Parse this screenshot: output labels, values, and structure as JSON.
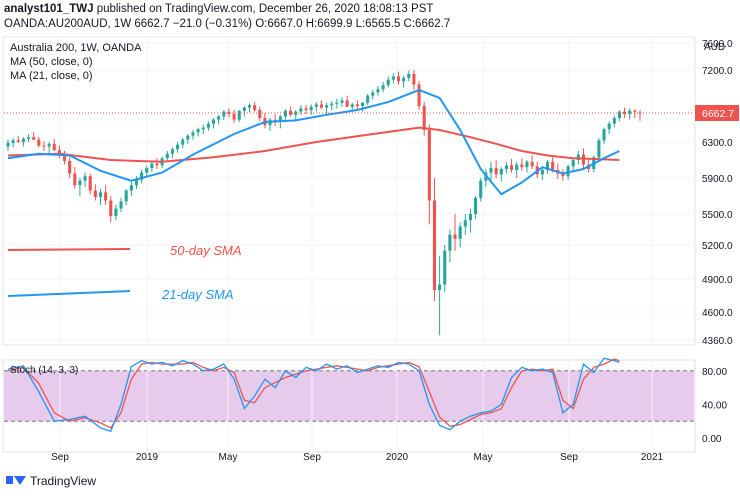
{
  "header": {
    "publisher": "analyst101_TWJ",
    "published_text": " published on TradingView.com, December 26, 2020 18:08:13 PST",
    "symbol_line": "OANDA:AU200AUD, 1W  6662.7  −21.0 (−0.31%)  O:6667.0  H:6699.9  L:6565.5  C:6662.7"
  },
  "chart_data": {
    "type": "candlestick",
    "title": "Australia 200, 1W, OANDA",
    "indicators": [
      "MA (50, close, 0)",
      "MA (21, close, 0)"
    ],
    "currency_label": "AUD",
    "y_ticks": [
      4360,
      4600,
      4900,
      5200,
      5500,
      5900,
      6300,
      6662.7,
      7200,
      7600
    ],
    "y_tick_labels": [
      "4360.0",
      "4600.0",
      "4900.0",
      "5200.0",
      "5500.0",
      "5900.0",
      "6300.0",
      "6662.7",
      "7200.0",
      "7600.0"
    ],
    "last_price_label": "6662.7",
    "x_tick_labels": [
      "Sep",
      "2019",
      "May",
      "Sep",
      "2020",
      "May",
      "Sep",
      "2021"
    ],
    "annotations": [
      "50-day SMA",
      "21-day SMA"
    ],
    "stoch": {
      "label": "Stoch (14, 3, 3)",
      "y_ticks": [
        "80.00",
        "40.00",
        "0.00"
      ],
      "levels": [
        80,
        20
      ]
    },
    "colors": {
      "up": "#26a69a",
      "down": "#ef5350",
      "ma50": "#ef5350",
      "ma21": "#2196f3",
      "stoch_k": "#2196f3",
      "stoch_d": "#ef5350",
      "stoch_band": "#e1bee7",
      "last_price_bg": "#ef5350"
    },
    "candles": [
      [
        6250,
        6330,
        6200,
        6290
      ],
      [
        6290,
        6350,
        6240,
        6320
      ],
      [
        6320,
        6380,
        6290,
        6300
      ],
      [
        6300,
        6360,
        6250,
        6340
      ],
      [
        6340,
        6400,
        6300,
        6360
      ],
      [
        6360,
        6420,
        6320,
        6330
      ],
      [
        6330,
        6360,
        6240,
        6260
      ],
      [
        6260,
        6310,
        6200,
        6250
      ],
      [
        6250,
        6300,
        6170,
        6280
      ],
      [
        6280,
        6340,
        6200,
        6210
      ],
      [
        6210,
        6260,
        6120,
        6150
      ],
      [
        6150,
        6200,
        6050,
        6090
      ],
      [
        6090,
        6130,
        5900,
        5950
      ],
      [
        5950,
        6020,
        5780,
        5820
      ],
      [
        5820,
        5900,
        5700,
        5870
      ],
      [
        5870,
        5960,
        5800,
        5920
      ],
      [
        5920,
        5950,
        5720,
        5760
      ],
      [
        5760,
        5830,
        5650,
        5690
      ],
      [
        5690,
        5780,
        5600,
        5740
      ],
      [
        5740,
        5820,
        5600,
        5650
      ],
      [
        5650,
        5700,
        5420,
        5480
      ],
      [
        5480,
        5600,
        5440,
        5560
      ],
      [
        5560,
        5680,
        5520,
        5640
      ],
      [
        5640,
        5780,
        5600,
        5760
      ],
      [
        5760,
        5860,
        5700,
        5820
      ],
      [
        5820,
        5920,
        5780,
        5880
      ],
      [
        5880,
        5990,
        5840,
        5960
      ],
      [
        5960,
        6040,
        5920,
        6010
      ],
      [
        6010,
        6090,
        5970,
        6060
      ],
      [
        6060,
        6120,
        6000,
        6040
      ],
      [
        6040,
        6140,
        6010,
        6120
      ],
      [
        6120,
        6200,
        6080,
        6170
      ],
      [
        6170,
        6240,
        6120,
        6220
      ],
      [
        6220,
        6300,
        6180,
        6270
      ],
      [
        6270,
        6350,
        6230,
        6330
      ],
      [
        6330,
        6400,
        6280,
        6380
      ],
      [
        6380,
        6450,
        6330,
        6420
      ],
      [
        6420,
        6480,
        6370,
        6460
      ],
      [
        6460,
        6520,
        6400,
        6480
      ],
      [
        6480,
        6560,
        6440,
        6530
      ],
      [
        6530,
        6600,
        6470,
        6580
      ],
      [
        6580,
        6640,
        6520,
        6620
      ],
      [
        6620,
        6700,
        6580,
        6680
      ],
      [
        6680,
        6720,
        6610,
        6650
      ],
      [
        6650,
        6700,
        6540,
        6580
      ],
      [
        6580,
        6700,
        6550,
        6690
      ],
      [
        6690,
        6750,
        6620,
        6730
      ],
      [
        6730,
        6780,
        6670,
        6760
      ],
      [
        6760,
        6800,
        6680,
        6700
      ],
      [
        6700,
        6740,
        6560,
        6600
      ],
      [
        6600,
        6660,
        6470,
        6510
      ],
      [
        6510,
        6600,
        6440,
        6580
      ],
      [
        6580,
        6650,
        6500,
        6560
      ],
      [
        6560,
        6640,
        6470,
        6620
      ],
      [
        6620,
        6710,
        6580,
        6690
      ],
      [
        6690,
        6740,
        6620,
        6640
      ],
      [
        6640,
        6700,
        6560,
        6680
      ],
      [
        6680,
        6760,
        6640,
        6720
      ],
      [
        6720,
        6760,
        6650,
        6700
      ],
      [
        6700,
        6770,
        6640,
        6740
      ],
      [
        6740,
        6800,
        6680,
        6770
      ],
      [
        6770,
        6820,
        6710,
        6730
      ],
      [
        6730,
        6790,
        6640,
        6760
      ],
      [
        6760,
        6810,
        6700,
        6780
      ],
      [
        6780,
        6840,
        6720,
        6790
      ],
      [
        6790,
        6860,
        6740,
        6820
      ],
      [
        6820,
        6880,
        6760,
        6740
      ],
      [
        6740,
        6790,
        6690,
        6770
      ],
      [
        6770,
        6820,
        6700,
        6750
      ],
      [
        6750,
        6800,
        6680,
        6790
      ],
      [
        6790,
        6900,
        6760,
        6880
      ],
      [
        6880,
        6950,
        6830,
        6920
      ],
      [
        6920,
        7000,
        6880,
        6960
      ],
      [
        6960,
        7050,
        6920,
        7010
      ],
      [
        7010,
        7120,
        6980,
        7080
      ],
      [
        7080,
        7160,
        7030,
        7120
      ],
      [
        7120,
        7180,
        7020,
        7060
      ],
      [
        7060,
        7130,
        6980,
        7100
      ],
      [
        7100,
        7190,
        7060,
        7150
      ],
      [
        7150,
        7200,
        6950,
        7020
      ],
      [
        7020,
        7060,
        6700,
        6750
      ],
      [
        6750,
        6800,
        6380,
        6450
      ],
      [
        6450,
        6520,
        5400,
        5650
      ],
      [
        5650,
        5900,
        4700,
        4800
      ],
      [
        4800,
        5100,
        4400,
        4850
      ],
      [
        4850,
        5200,
        4780,
        5150
      ],
      [
        5150,
        5350,
        5050,
        5300
      ],
      [
        5300,
        5500,
        5150,
        5260
      ],
      [
        5260,
        5420,
        5180,
        5380
      ],
      [
        5380,
        5500,
        5300,
        5440
      ],
      [
        5440,
        5560,
        5320,
        5500
      ],
      [
        5500,
        5700,
        5450,
        5680
      ],
      [
        5680,
        5900,
        5640,
        5870
      ],
      [
        5870,
        6000,
        5800,
        5960
      ],
      [
        5960,
        6080,
        5880,
        6010
      ],
      [
        6010,
        6100,
        5900,
        5940
      ],
      [
        5940,
        6020,
        5860,
        6000
      ],
      [
        6000,
        6080,
        5950,
        6040
      ],
      [
        6040,
        6110,
        5960,
        5990
      ],
      [
        5990,
        6080,
        5900,
        6050
      ],
      [
        6050,
        6120,
        5980,
        6020
      ],
      [
        6020,
        6100,
        5960,
        6080
      ],
      [
        6080,
        6150,
        6000,
        6030
      ],
      [
        6030,
        6080,
        5900,
        5940
      ],
      [
        5940,
        6020,
        5880,
        5990
      ],
      [
        5990,
        6100,
        5950,
        6080
      ],
      [
        6080,
        6130,
        5960,
        5990
      ],
      [
        5990,
        6060,
        5890,
        5950
      ],
      [
        5950,
        6000,
        5870,
        5920
      ],
      [
        5920,
        6050,
        5880,
        6030
      ],
      [
        6030,
        6120,
        5980,
        6100
      ],
      [
        6100,
        6200,
        6050,
        6160
      ],
      [
        6160,
        6230,
        6000,
        6050
      ],
      [
        6050,
        6110,
        5960,
        6000
      ],
      [
        6000,
        6150,
        5960,
        6130
      ],
      [
        6130,
        6350,
        6100,
        6320
      ],
      [
        6320,
        6480,
        6280,
        6460
      ],
      [
        6460,
        6560,
        6400,
        6530
      ],
      [
        6530,
        6630,
        6480,
        6600
      ],
      [
        6600,
        6700,
        6560,
        6680
      ],
      [
        6680,
        6730,
        6600,
        6650
      ],
      [
        6650,
        6720,
        6580,
        6690
      ],
      [
        6690,
        6710,
        6600,
        6684
      ],
      [
        6667,
        6699.9,
        6565.5,
        6662.7
      ]
    ],
    "ma50": [
      [
        0,
        6150
      ],
      [
        10,
        6170
      ],
      [
        20,
        6100
      ],
      [
        30,
        6080
      ],
      [
        40,
        6130
      ],
      [
        50,
        6200
      ],
      [
        60,
        6300
      ],
      [
        70,
        6390
      ],
      [
        80,
        6480
      ],
      [
        84,
        6450
      ],
      [
        90,
        6360
      ],
      [
        95,
        6280
      ],
      [
        100,
        6200
      ],
      [
        105,
        6150
      ],
      [
        110,
        6120
      ],
      [
        115,
        6110
      ],
      [
        119,
        6100
      ]
    ],
    "ma21": [
      [
        0,
        6120
      ],
      [
        6,
        6170
      ],
      [
        12,
        6150
      ],
      [
        18,
        5980
      ],
      [
        24,
        5870
      ],
      [
        30,
        5960
      ],
      [
        36,
        6160
      ],
      [
        44,
        6400
      ],
      [
        50,
        6550
      ],
      [
        56,
        6570
      ],
      [
        62,
        6640
      ],
      [
        68,
        6700
      ],
      [
        74,
        6800
      ],
      [
        80,
        6950
      ],
      [
        84,
        6850
      ],
      [
        88,
        6450
      ],
      [
        92,
        6000
      ],
      [
        96,
        5720
      ],
      [
        100,
        5850
      ],
      [
        104,
        6020
      ],
      [
        108,
        5950
      ],
      [
        112,
        6000
      ],
      [
        116,
        6120
      ],
      [
        119,
        6200
      ]
    ],
    "stoch_k": [
      [
        0,
        82
      ],
      [
        3,
        86
      ],
      [
        6,
        55
      ],
      [
        9,
        20
      ],
      [
        12,
        22
      ],
      [
        15,
        26
      ],
      [
        18,
        12
      ],
      [
        20,
        8
      ],
      [
        22,
        40
      ],
      [
        24,
        85
      ],
      [
        26,
        92
      ],
      [
        28,
        88
      ],
      [
        30,
        90
      ],
      [
        32,
        86
      ],
      [
        34,
        92
      ],
      [
        36,
        88
      ],
      [
        38,
        80
      ],
      [
        40,
        82
      ],
      [
        42,
        88
      ],
      [
        44,
        70
      ],
      [
        46,
        35
      ],
      [
        48,
        50
      ],
      [
        50,
        70
      ],
      [
        52,
        60
      ],
      [
        54,
        80
      ],
      [
        56,
        72
      ],
      [
        58,
        84
      ],
      [
        60,
        80
      ],
      [
        62,
        88
      ],
      [
        64,
        82
      ],
      [
        66,
        86
      ],
      [
        68,
        78
      ],
      [
        70,
        82
      ],
      [
        72,
        86
      ],
      [
        74,
        84
      ],
      [
        76,
        90
      ],
      [
        78,
        88
      ],
      [
        80,
        80
      ],
      [
        82,
        40
      ],
      [
        84,
        15
      ],
      [
        86,
        10
      ],
      [
        88,
        20
      ],
      [
        90,
        26
      ],
      [
        92,
        30
      ],
      [
        94,
        32
      ],
      [
        96,
        40
      ],
      [
        98,
        72
      ],
      [
        100,
        84
      ],
      [
        102,
        80
      ],
      [
        104,
        82
      ],
      [
        106,
        78
      ],
      [
        108,
        30
      ],
      [
        110,
        40
      ],
      [
        112,
        88
      ],
      [
        114,
        78
      ],
      [
        116,
        95
      ],
      [
        118,
        92
      ],
      [
        119,
        90
      ]
    ],
    "stoch_d": [
      [
        0,
        80
      ],
      [
        3,
        84
      ],
      [
        6,
        65
      ],
      [
        9,
        30
      ],
      [
        12,
        20
      ],
      [
        15,
        24
      ],
      [
        18,
        18
      ],
      [
        20,
        12
      ],
      [
        22,
        30
      ],
      [
        24,
        70
      ],
      [
        26,
        88
      ],
      [
        28,
        90
      ],
      [
        30,
        88
      ],
      [
        32,
        88
      ],
      [
        34,
        88
      ],
      [
        36,
        90
      ],
      [
        38,
        84
      ],
      [
        40,
        80
      ],
      [
        42,
        84
      ],
      [
        44,
        78
      ],
      [
        46,
        45
      ],
      [
        48,
        42
      ],
      [
        50,
        60
      ],
      [
        52,
        66
      ],
      [
        54,
        72
      ],
      [
        56,
        76
      ],
      [
        58,
        80
      ],
      [
        60,
        82
      ],
      [
        62,
        84
      ],
      [
        64,
        86
      ],
      [
        66,
        84
      ],
      [
        68,
        82
      ],
      [
        70,
        80
      ],
      [
        72,
        84
      ],
      [
        74,
        86
      ],
      [
        76,
        88
      ],
      [
        78,
        90
      ],
      [
        80,
        85
      ],
      [
        82,
        55
      ],
      [
        84,
        25
      ],
      [
        86,
        14
      ],
      [
        88,
        16
      ],
      [
        90,
        22
      ],
      [
        92,
        28
      ],
      [
        94,
        30
      ],
      [
        96,
        35
      ],
      [
        98,
        60
      ],
      [
        100,
        80
      ],
      [
        102,
        82
      ],
      [
        104,
        80
      ],
      [
        106,
        82
      ],
      [
        108,
        45
      ],
      [
        110,
        35
      ],
      [
        112,
        70
      ],
      [
        114,
        84
      ],
      [
        116,
        88
      ],
      [
        118,
        94
      ],
      [
        119,
        92
      ]
    ]
  },
  "footer": {
    "brand": "TradingView"
  }
}
